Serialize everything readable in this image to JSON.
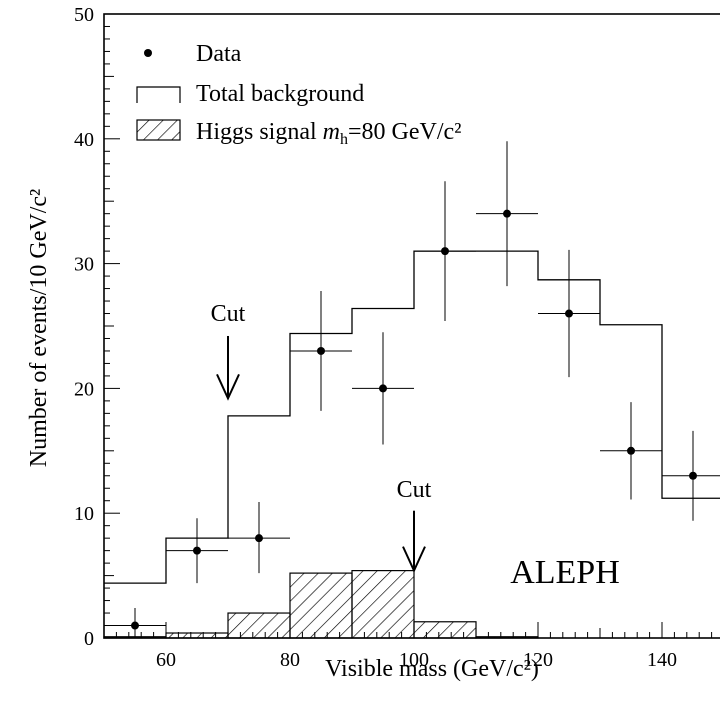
{
  "chart_data": {
    "type": "histogram",
    "xlabel": "Visible mass (GeV/c²)",
    "ylabel": "Number of events/10 GeV/c²",
    "xlim": [
      50,
      150
    ],
    "ylim": [
      0,
      50
    ],
    "x_ticks": [
      60,
      80,
      100,
      120,
      140
    ],
    "y_ticks": [
      0,
      10,
      20,
      30,
      40,
      50
    ],
    "bin_edges": [
      50,
      60,
      70,
      80,
      90,
      100,
      110,
      120,
      130,
      140,
      150
    ],
    "series": [
      {
        "name": "Total background",
        "style": "step",
        "values": [
          4.4,
          8.0,
          17.8,
          24.4,
          26.4,
          31.0,
          31.0,
          28.7,
          25.1,
          11.2
        ]
      },
      {
        "name": "Higgs signal m_h=80 GeV/c²",
        "style": "hatched",
        "values": [
          0.1,
          0.4,
          2.0,
          5.2,
          5.4,
          1.3,
          0.1,
          0.0,
          0.0,
          0.0
        ]
      },
      {
        "name": "Data",
        "style": "points",
        "points": [
          {
            "x": 55,
            "y": 1,
            "err_lo": 0.9,
            "err_hi": 1.4
          },
          {
            "x": 65,
            "y": 7,
            "err_lo": 2.6,
            "err_hi": 2.6
          },
          {
            "x": 75,
            "y": 8,
            "err_lo": 2.8,
            "err_hi": 2.9
          },
          {
            "x": 85,
            "y": 23,
            "err_lo": 4.8,
            "err_hi": 4.8
          },
          {
            "x": 95,
            "y": 20,
            "err_lo": 4.5,
            "err_hi": 4.5
          },
          {
            "x": 105,
            "y": 31,
            "err_lo": 5.6,
            "err_hi": 5.6
          },
          {
            "x": 115,
            "y": 34,
            "err_lo": 5.8,
            "err_hi": 5.8
          },
          {
            "x": 125,
            "y": 26,
            "err_lo": 5.1,
            "err_hi": 5.1
          },
          {
            "x": 135,
            "y": 15,
            "err_lo": 3.9,
            "err_hi": 3.9
          },
          {
            "x": 145,
            "y": 13,
            "err_lo": 3.6,
            "err_hi": 3.6
          }
        ]
      }
    ],
    "legend": {
      "placement": "top-left",
      "data_label": "Data",
      "background_label": "Total background",
      "signal_label_prefix": "Higgs signal ",
      "signal_label_m": "m",
      "signal_label_sub": "h",
      "signal_label_suffix": "=80 GeV/c²"
    },
    "annotations": [
      {
        "text": "Cut",
        "x": 70,
        "y_text": 25.4,
        "arrow_from": 24.2,
        "arrow_to": 19.2
      },
      {
        "text": "Cut",
        "x": 100,
        "y_text": 11.3,
        "arrow_from": 10.2,
        "arrow_to": 5.4
      }
    ],
    "experiment_label": "ALEPH"
  }
}
